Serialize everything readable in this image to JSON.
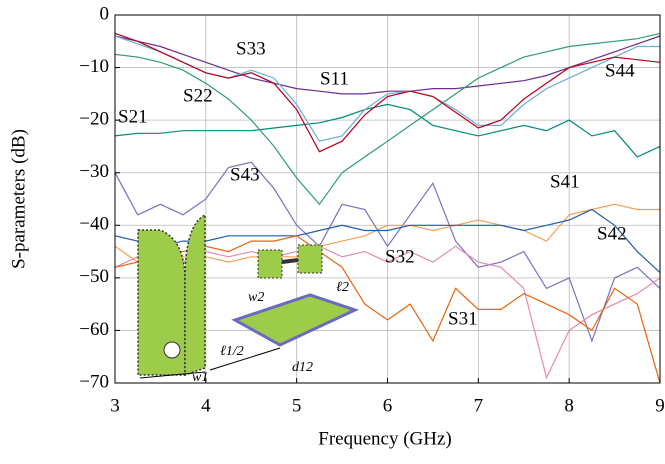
{
  "chart_data": {
    "type": "line",
    "x_label": "Frequency (GHz)",
    "y_label": "S-parameters (dB)",
    "x": [
      3,
      3.25,
      3.5,
      3.75,
      4,
      4.25,
      4.5,
      4.75,
      5,
      5.25,
      5.5,
      5.75,
      6,
      6.25,
      6.5,
      6.75,
      7,
      7.25,
      7.5,
      7.75,
      8,
      8.25,
      8.5,
      8.75,
      9
    ],
    "xlim": [
      3,
      9
    ],
    "xticks": [
      3,
      4,
      5,
      6,
      7,
      8,
      9
    ],
    "ylim": [
      -70,
      0
    ],
    "yticks": [
      {
        "value": -70,
        "label": "−70"
      },
      {
        "value": -60,
        "label": "−60"
      },
      {
        "value": -50,
        "label": "−50"
      },
      {
        "value": -40,
        "label": "−40"
      },
      {
        "value": -30,
        "label": "−30"
      },
      {
        "value": -20,
        "label": "−20"
      },
      {
        "value": -10,
        "label": "−10"
      },
      0
    ],
    "grid": true,
    "series": [
      {
        "name": "S11",
        "color": "#6a2c91",
        "values": [
          -4,
          -5,
          -6,
          -7.5,
          -9,
          -10.5,
          -12,
          -13,
          -14,
          -14.5,
          -15,
          -15,
          -14.5,
          -14.5,
          -14,
          -14,
          -13.5,
          -13,
          -12.5,
          -11.5,
          -10,
          -8.5,
          -7,
          -5.5,
          -4
        ]
      },
      {
        "name": "S21",
        "color": "#00897b",
        "values": [
          -23,
          -22.5,
          -22.5,
          -22,
          -22,
          -22,
          -22,
          -21.5,
          -21,
          -20.5,
          -19.5,
          -18,
          -17,
          -18,
          -21,
          -22,
          -23,
          -22,
          -21,
          -22,
          -20,
          -23,
          -22,
          -27,
          -25
        ]
      },
      {
        "name": "S22",
        "color": "#2e9e6e",
        "values": [
          -7.5,
          -8,
          -9,
          -10.5,
          -13,
          -16,
          -20,
          -25,
          -31,
          -36,
          -30,
          -27,
          -24,
          -21,
          -18,
          -15,
          -12,
          -10,
          -8,
          -7,
          -6,
          -5.5,
          -5,
          -4.5,
          -3.5
        ]
      },
      {
        "name": "S33",
        "color": "#6baed6",
        "values": [
          -4,
          -5.5,
          -7,
          -9,
          -11,
          -12,
          -10.5,
          -12,
          -17,
          -24,
          -23,
          -18,
          -15,
          -14.5,
          -15.5,
          -18,
          -21,
          -21,
          -17,
          -14,
          -12,
          -10,
          -8,
          -6,
          -6
        ]
      },
      {
        "name": "S44",
        "color": "#b3001b",
        "values": [
          -3.5,
          -5,
          -7,
          -9,
          -11,
          -12,
          -11,
          -13,
          -18,
          -26,
          -24,
          -19,
          -15.5,
          -14.5,
          -15.5,
          -18.5,
          -21.5,
          -20,
          -16,
          -13,
          -10,
          -9,
          -8,
          -8.5,
          -9
        ]
      },
      {
        "name": "S43",
        "color": "#7b6fc0",
        "values": [
          -30,
          -38,
          -36,
          -38,
          -35,
          -29,
          -28,
          -33,
          -40,
          -44,
          -36,
          -37,
          -44,
          -38,
          -32,
          -43,
          -48,
          -47,
          -45,
          -52,
          -50,
          -62,
          -50,
          -48,
          -52
        ]
      },
      {
        "name": "S41",
        "color": "#f5a05a",
        "values": [
          -44,
          -47,
          -47,
          -46,
          -46,
          -47,
          -46,
          -46,
          -46,
          -44,
          -43,
          -42,
          -40,
          -40,
          -41,
          -40,
          -39,
          -40,
          -41,
          -43,
          -38,
          -37,
          -36,
          -37,
          -37
        ]
      },
      {
        "name": "S42",
        "color": "#1f5fa8",
        "values": [
          -42,
          -43,
          -44,
          -43,
          -43,
          -42,
          -42,
          -42,
          -42,
          -41,
          -40,
          -41,
          -41,
          -40,
          -40,
          -40,
          -40,
          -40,
          -41,
          -40,
          -39,
          -37,
          -40,
          -45,
          -49
        ]
      },
      {
        "name": "S32",
        "color": "#e889b0",
        "values": [
          -48,
          -46,
          -48,
          -47,
          -45,
          -46,
          -45,
          -46,
          -45,
          -44,
          -46,
          -45,
          -47,
          -45,
          -47,
          -44,
          -47,
          -48,
          -52,
          -69,
          -60,
          -57,
          -55,
          -53,
          -50
        ]
      },
      {
        "name": "S31",
        "color": "#e6650f",
        "values": [
          -48,
          -47,
          -46,
          -45,
          -44,
          -45,
          -43,
          -43,
          -42,
          -45,
          -48,
          -55,
          -58,
          -55,
          -62,
          -52,
          -56,
          -56,
          -53,
          -55,
          -57,
          -60,
          -52,
          -55,
          -70
        ]
      }
    ],
    "inset_labels": [
      "w1",
      "ℓ1/2",
      "d12",
      "w2",
      "ℓ2"
    ]
  }
}
